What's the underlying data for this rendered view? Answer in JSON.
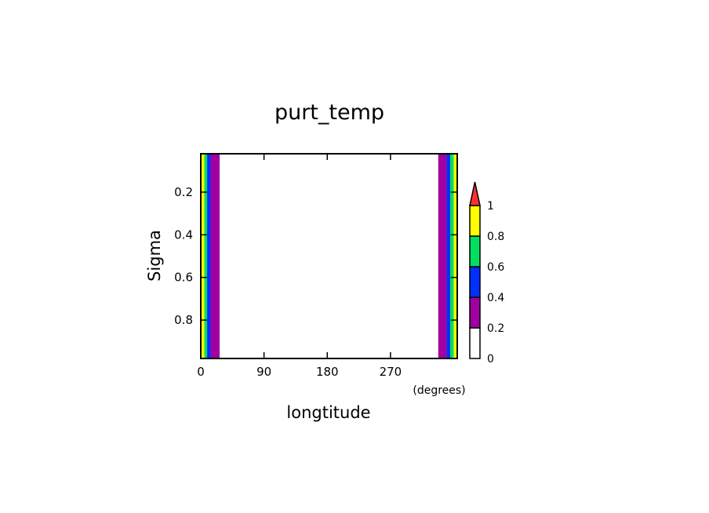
{
  "chart_data": {
    "type": "heatmap",
    "title": "purt_temp",
    "xlabel": "longtitude",
    "x_units": "(degrees)",
    "ylabel": "Sigma",
    "xlim": [
      0,
      365
    ],
    "ylim": [
      0.02,
      0.98
    ],
    "y_inverted": true,
    "x_ticks": [
      0,
      90,
      180,
      270
    ],
    "x_tick_labels": [
      "0",
      "90",
      "180",
      "270"
    ],
    "y_ticks": [
      0.2,
      0.4,
      0.6,
      0.8
    ],
    "y_tick_labels": [
      "0.2",
      "0.4",
      "0.6",
      "0.8"
    ],
    "colorbar": {
      "levels": [
        0,
        0.2,
        0.4,
        0.6,
        0.8,
        1
      ],
      "labels": [
        "0",
        "0.2",
        "0.4",
        "0.6",
        "0.8",
        "1"
      ],
      "colors": [
        "#ffffff",
        "#a000a0",
        "#0030ff",
        "#00e060",
        "#ffff00"
      ],
      "extend_max_color": "#ff3030"
    },
    "bands": [
      {
        "x0": 0,
        "x1": 5,
        "level": 4
      },
      {
        "x0": 5,
        "x1": 9,
        "level": 3
      },
      {
        "x0": 9,
        "x1": 14,
        "level": 2
      },
      {
        "x0": 14,
        "x1": 27,
        "level": 1
      },
      {
        "x0": 27,
        "x1": 338,
        "level": 0
      },
      {
        "x0": 338,
        "x1": 350,
        "level": 1
      },
      {
        "x0": 350,
        "x1": 355,
        "level": 2
      },
      {
        "x0": 355,
        "x1": 360,
        "level": 3
      },
      {
        "x0": 360,
        "x1": 365,
        "level": 4
      }
    ]
  }
}
